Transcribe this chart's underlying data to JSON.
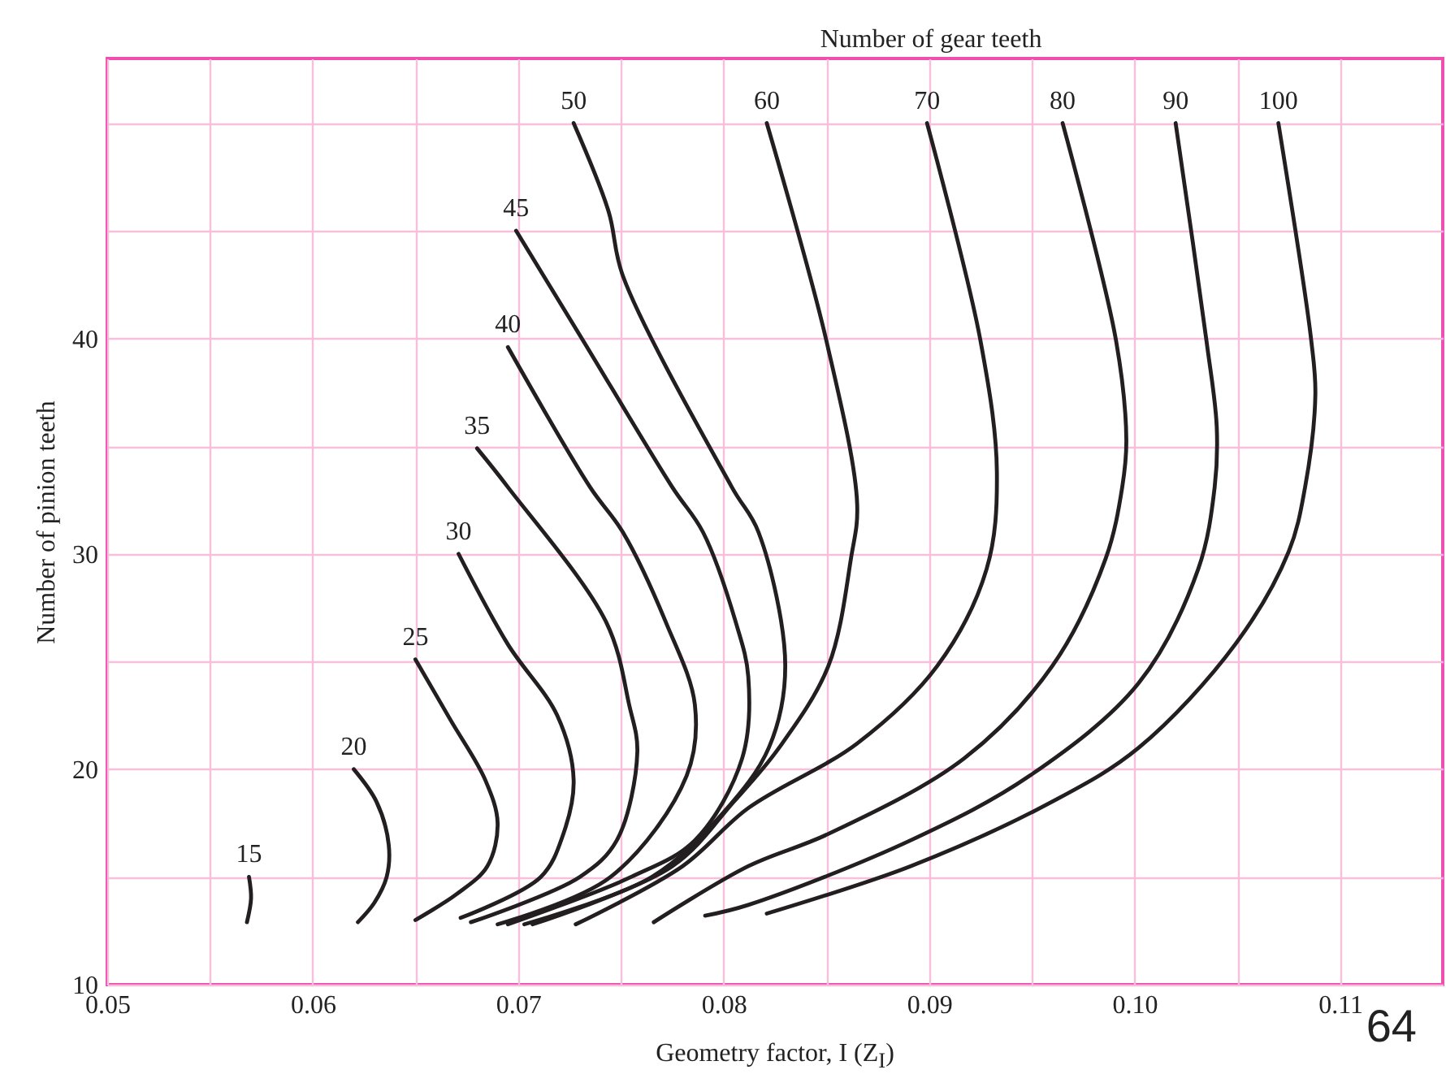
{
  "chart_data": {
    "type": "line",
    "legend_title": "Number of gear teeth",
    "xlabel": "Geometry factor, I (Z$_{I}$)",
    "ylabel": "Number of pinion teeth",
    "xlim": [
      0.05,
      0.115
    ],
    "ylim": [
      10,
      53
    ],
    "xticks": [
      0.05,
      {
        "value": 0.055,
        "label": null
      },
      0.06,
      {
        "value": 0.065,
        "label": null
      },
      0.07,
      {
        "value": 0.075,
        "label": null
      },
      0.08,
      {
        "value": 0.085,
        "label": null
      },
      0.09,
      {
        "value": 0.095,
        "label": null
      },
      {
        "value": 0.1,
        "label": "0.10"
      },
      {
        "value": 0.105,
        "label": null
      },
      0.11
    ],
    "yticks": [
      10,
      {
        "value": 15,
        "label": null
      },
      20,
      {
        "value": 25,
        "label": null
      },
      30,
      {
        "value": 35,
        "label": null
      },
      40,
      {
        "value": 45,
        "label": null
      },
      {
        "value": 50,
        "label": null
      }
    ],
    "grid": true,
    "legend": false,
    "marker": "none",
    "line_style": "solid",
    "series": [
      {
        "name": "15",
        "color": "#231f20",
        "x": [
          0.0569,
          0.057,
          0.0568
        ],
        "values": [
          15,
          14,
          12.9
        ]
      },
      {
        "name": "20",
        "color": "#231f20",
        "x": [
          0.062,
          0.0631,
          0.0637,
          0.0636,
          0.063,
          0.0622
        ],
        "values": [
          20,
          18.5,
          16.5,
          15,
          13.8,
          12.9
        ]
      },
      {
        "name": "25",
        "color": "#231f20",
        "x": [
          0.065,
          0.0667,
          0.0684,
          0.069,
          0.0685,
          0.067,
          0.065
        ],
        "values": [
          25.1,
          22.3,
          19.5,
          17.5,
          15.5,
          14.2,
          13.0
        ]
      },
      {
        "name": "30",
        "color": "#231f20",
        "x": [
          0.0671,
          0.0695,
          0.0719,
          0.0727,
          0.0722,
          0.0711,
          0.0672
        ],
        "values": [
          30,
          25.8,
          22.5,
          19.5,
          17,
          15,
          13.1
        ]
      },
      {
        "name": "35",
        "color": "#231f20",
        "x": [
          0.068,
          0.0695,
          0.0743,
          0.0754,
          0.0758,
          0.0748,
          0.073,
          0.0677
        ],
        "values": [
          34.9,
          33.1,
          26.8,
          23,
          20.8,
          16.7,
          15,
          12.9
        ]
      },
      {
        "name": "40",
        "color": "#231f20",
        "x": [
          0.0695,
          0.0735,
          0.0751,
          0.0772,
          0.0786,
          0.0782,
          0.0745,
          0.069
        ],
        "values": [
          39.6,
          33.1,
          31,
          26.8,
          23,
          19.7,
          15,
          12.8
        ]
      },
      {
        "name": "45",
        "color": "#231f20",
        "x": [
          0.0699,
          0.0731,
          0.0775,
          0.079,
          0.0806,
          0.0812,
          0.0809,
          0.0786,
          0.0755,
          0.0695
        ],
        "values": [
          45,
          40,
          33.1,
          31,
          26.8,
          24.3,
          20.5,
          16.7,
          15,
          12.8
        ]
      },
      {
        "name": "50",
        "color": "#231f20",
        "x": [
          0.0727,
          0.0744,
          0.0751,
          0.0804,
          0.0817,
          0.083,
          0.0822,
          0.08,
          0.0765,
          0.0703
        ],
        "values": [
          50,
          45.9,
          42.9,
          33.1,
          31,
          24.8,
          21,
          18,
          15,
          12.8
        ]
      },
      {
        "name": "60",
        "color": "#231f20",
        "x": [
          0.0821,
          0.085,
          0.0865,
          0.0862,
          0.0851,
          0.0827,
          0.0805,
          0.0775,
          0.0707
        ],
        "values": [
          50,
          39.9,
          32.3,
          29.8,
          24.8,
          21,
          18.5,
          15.5,
          12.8
        ]
      },
      {
        "name": "70",
        "color": "#231f20",
        "x": [
          0.0899,
          0.0925,
          0.0933,
          0.0928,
          0.0904,
          0.0865,
          0.0812,
          0.078,
          0.0728
        ],
        "values": [
          50,
          39.9,
          33.8,
          29.3,
          24.8,
          21.2,
          18.2,
          15.5,
          12.8
        ]
      },
      {
        "name": "80",
        "color": "#231f20",
        "x": [
          0.0965,
          0.0991,
          0.0996,
          0.0994,
          0.0986,
          0.096,
          0.0917,
          0.0851,
          0.0812,
          0.0766
        ],
        "values": [
          50,
          39.9,
          35.3,
          33.1,
          29.8,
          24.8,
          20.5,
          17,
          15.5,
          12.9
        ]
      },
      {
        "name": "90",
        "color": "#231f20",
        "x": [
          0.102,
          0.1035,
          0.104,
          0.1039,
          0.1031,
          0.1002,
          0.0949,
          0.0891,
          0.0812,
          0.0791
        ],
        "values": [
          50,
          39.9,
          35.9,
          33.1,
          29.3,
          24,
          19.7,
          16.7,
          13.7,
          13.2
        ]
      },
      {
        "name": "100",
        "color": "#231f20",
        "x": [
          0.107,
          0.1086,
          0.1088,
          0.1083,
          0.1075,
          0.1049,
          0.1002,
          0.096,
          0.0891,
          0.0821
        ],
        "values": [
          50,
          39.9,
          37.4,
          33.1,
          30.1,
          25.8,
          21,
          18.5,
          15.5,
          13.3
        ]
      }
    ],
    "annotations": [
      "64"
    ]
  }
}
